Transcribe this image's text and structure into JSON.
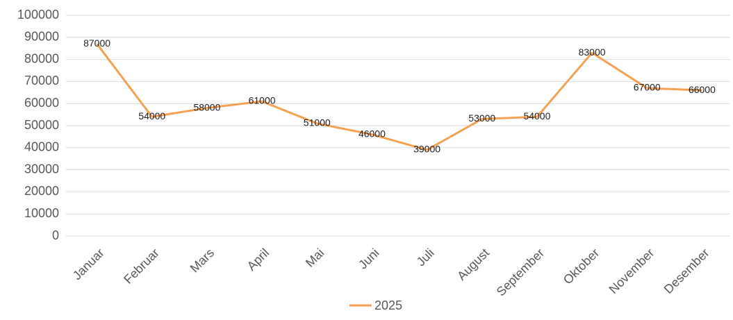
{
  "chart_data": {
    "type": "line",
    "categories": [
      "Januar",
      "Februar",
      "Mars",
      "April",
      "Mai",
      "Juni",
      "Juli",
      "August",
      "September",
      "Oktober",
      "November",
      "Desember"
    ],
    "series": [
      {
        "name": "2025",
        "color": "#f4a153",
        "values": [
          87000,
          54000,
          58000,
          61000,
          51000,
          46000,
          39000,
          53000,
          54000,
          83000,
          67000,
          66000
        ]
      }
    ],
    "ylim": [
      0,
      100000
    ],
    "yticks": [
      0,
      10000,
      20000,
      30000,
      40000,
      50000,
      60000,
      70000,
      80000,
      90000,
      100000
    ],
    "grid": true,
    "legend": "bottom",
    "data_labels": true
  }
}
